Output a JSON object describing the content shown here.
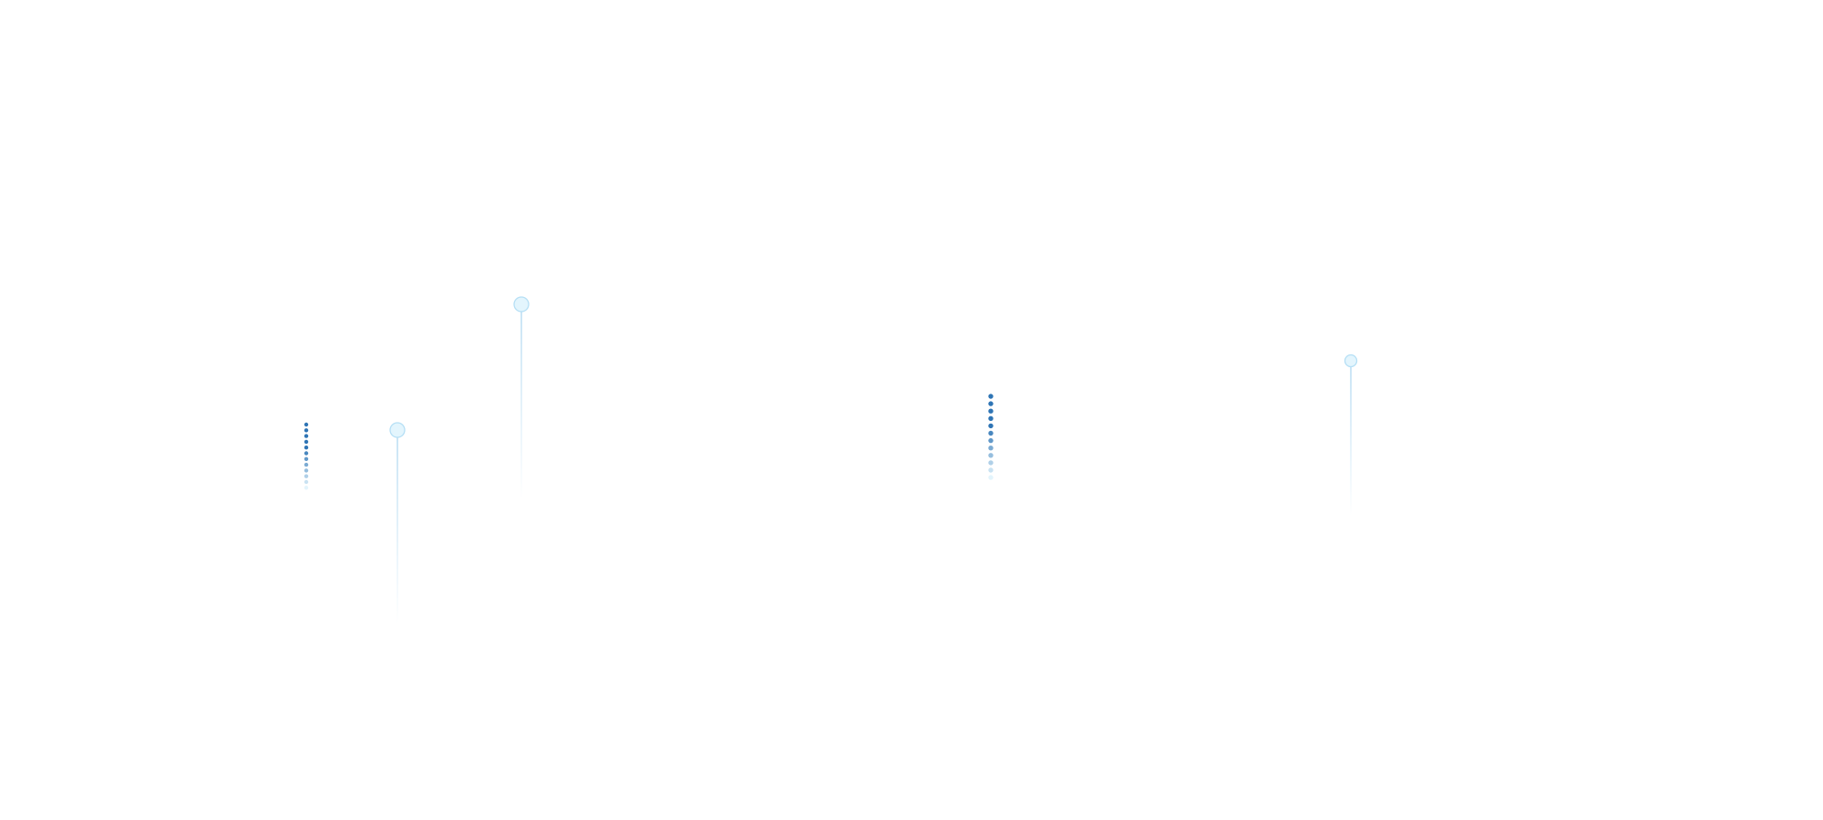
{
  "colors": {
    "background": "#ffffff",
    "dot_dark": "#2f75b5",
    "dot_light": "#e3f4fc",
    "pin_fill": "#e3f5fd",
    "pin_stroke": "#b5dff5",
    "pin_line": "#b8dcf2"
  },
  "decorations": {
    "dot_columns": [
      {
        "name": "dot-column-left",
        "count": 12
      },
      {
        "name": "dot-column-center",
        "count": 12
      }
    ],
    "pins": [
      {
        "name": "pin-left-low"
      },
      {
        "name": "pin-left-high"
      },
      {
        "name": "pin-right"
      }
    ]
  }
}
